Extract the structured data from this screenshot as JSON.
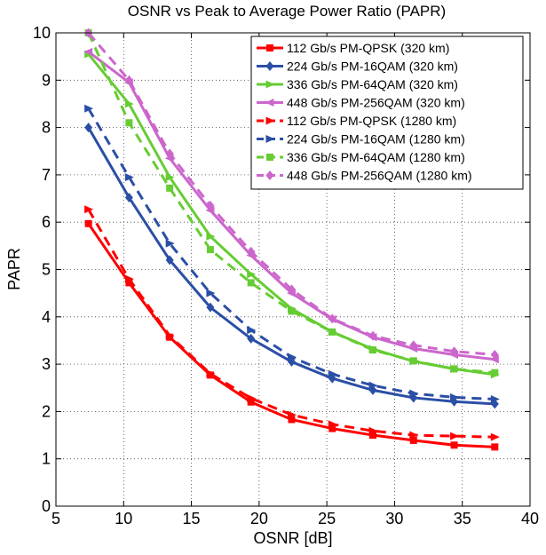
{
  "chart_data": {
    "type": "line",
    "title": "OSNR vs Peak to Average Power Ratio (PAPR)",
    "xlabel": "OSNR [dB]",
    "ylabel": "PAPR",
    "xlim": [
      5,
      40
    ],
    "ylim": [
      0,
      10
    ],
    "xticks": [
      5,
      10,
      15,
      20,
      25,
      30,
      35,
      40
    ],
    "yticks": [
      0,
      1,
      2,
      3,
      4,
      5,
      6,
      7,
      8,
      9,
      10
    ],
    "grid": true,
    "grid_style": "dotted",
    "legend_position": "top-right",
    "x": [
      7.4,
      10.4,
      13.4,
      16.4,
      19.4,
      22.4,
      25.4,
      28.4,
      31.4,
      34.4,
      37.4
    ],
    "series": [
      {
        "name": "112 Gb/s PM-QPSK (320 km)",
        "color": "#ff0000",
        "dashed": false,
        "marker": "square",
        "values": [
          5.97,
          4.72,
          3.57,
          2.77,
          2.2,
          1.83,
          1.64,
          1.5,
          1.39,
          1.29,
          1.25
        ]
      },
      {
        "name": "224 Gb/s PM-16QAM (320 km)",
        "color": "#2b4fa6",
        "dashed": false,
        "marker": "diamond",
        "values": [
          8.0,
          6.52,
          5.2,
          4.2,
          3.54,
          3.05,
          2.7,
          2.45,
          2.29,
          2.21,
          2.16
        ]
      },
      {
        "name": "336 Gb/s PM-64QAM (320 km)",
        "color": "#66cc33",
        "dashed": false,
        "marker": "triangle-right",
        "values": [
          9.55,
          8.5,
          6.95,
          5.7,
          4.9,
          4.17,
          3.68,
          3.32,
          3.06,
          2.9,
          2.78
        ]
      },
      {
        "name": "448 Gb/s PM-256QAM (320 km)",
        "color": "#cc66cc",
        "dashed": false,
        "marker": "triangle-left",
        "values": [
          9.6,
          8.95,
          7.35,
          6.25,
          5.3,
          4.5,
          3.95,
          3.57,
          3.33,
          3.2,
          3.1
        ]
      },
      {
        "name": "112 Gb/s PM-QPSK (1280 km)",
        "color": "#ff0000",
        "dashed": true,
        "marker": "triangle-right",
        "values": [
          6.27,
          4.8,
          3.6,
          2.8,
          2.28,
          1.93,
          1.73,
          1.59,
          1.5,
          1.48,
          1.46
        ]
      },
      {
        "name": "224 Gb/s PM-16QAM (1280 km)",
        "color": "#2b4fa6",
        "dashed": true,
        "marker": "triangle-right",
        "values": [
          8.4,
          6.95,
          5.55,
          4.5,
          3.72,
          3.15,
          2.79,
          2.55,
          2.38,
          2.3,
          2.26
        ]
      },
      {
        "name": "336 Gb/s PM-64QAM (1280 km)",
        "color": "#66cc33",
        "dashed": true,
        "marker": "square",
        "values": [
          10.0,
          8.1,
          6.72,
          5.42,
          4.72,
          4.12,
          3.68,
          3.3,
          3.07,
          2.9,
          2.82
        ]
      },
      {
        "name": "448 Gb/s PM-256QAM (1280 km)",
        "color": "#cc66cc",
        "dashed": true,
        "marker": "diamond",
        "values": [
          10.0,
          9.0,
          7.45,
          6.35,
          5.38,
          4.58,
          3.96,
          3.6,
          3.4,
          3.27,
          3.2
        ]
      }
    ]
  }
}
